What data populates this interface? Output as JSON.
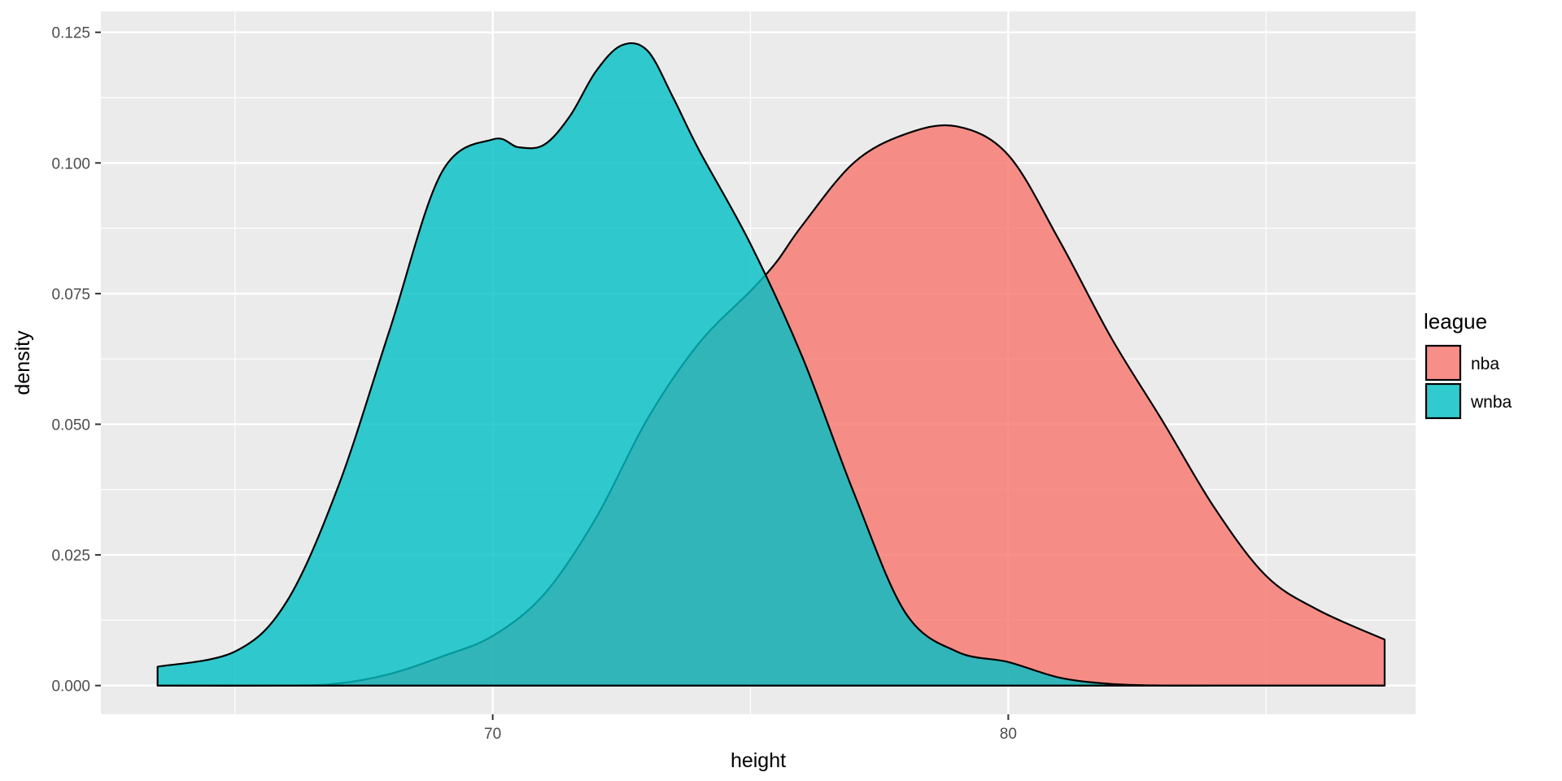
{
  "chart_data": {
    "type": "area",
    "subtype": "density",
    "xlabel": "height",
    "ylabel": "density",
    "xlim": [
      62.4,
      87.9
    ],
    "ylim": [
      -0.0055,
      0.129
    ],
    "x_ticks": [
      70,
      80
    ],
    "x_tick_labels": [
      "70",
      "80"
    ],
    "x_minor_ticks": [
      65,
      75,
      85
    ],
    "y_ticks": [
      0,
      0.025,
      0.05,
      0.075,
      0.1,
      0.125
    ],
    "y_tick_labels": [
      "0.000",
      "0.025",
      "0.050",
      "0.075",
      "0.100",
      "0.125"
    ],
    "y_minor_ticks": [
      0.0125,
      0.0375,
      0.0625,
      0.0875,
      0.1125
    ],
    "grid": true,
    "legend": {
      "title": "league",
      "position": "right",
      "entries": [
        "nba",
        "wnba"
      ]
    },
    "series": [
      {
        "name": "nba",
        "color": "#F8766D",
        "x": [
          63.5,
          66,
          67,
          68,
          69,
          70,
          71,
          72,
          73,
          74,
          75,
          75.5,
          76,
          77,
          78,
          79,
          80,
          81,
          82,
          83,
          84,
          85,
          86,
          87.3
        ],
        "y": [
          0.0,
          0.0,
          0.0004,
          0.0022,
          0.0055,
          0.0095,
          0.0175,
          0.032,
          0.051,
          0.0655,
          0.0755,
          0.081,
          0.088,
          0.1,
          0.1055,
          0.107,
          0.1015,
          0.085,
          0.0665,
          0.0505,
          0.034,
          0.021,
          0.0145,
          0.0088
        ]
      },
      {
        "name": "wnba",
        "color": "#00BFC4",
        "x": [
          63.5,
          65,
          66,
          67,
          68,
          69,
          70,
          70.5,
          71,
          71.5,
          72,
          72.5,
          73,
          73.5,
          74,
          75,
          76,
          77,
          78,
          79,
          80,
          81,
          82,
          83,
          84,
          87.3
        ],
        "y": [
          0.0036,
          0.0065,
          0.016,
          0.038,
          0.068,
          0.098,
          0.1045,
          0.103,
          0.1035,
          0.109,
          0.1175,
          0.1225,
          0.1215,
          0.1125,
          0.1025,
          0.0845,
          0.063,
          0.037,
          0.014,
          0.0065,
          0.0045,
          0.0015,
          0.0003,
          0.0,
          0.0,
          0.0
        ]
      }
    ]
  }
}
